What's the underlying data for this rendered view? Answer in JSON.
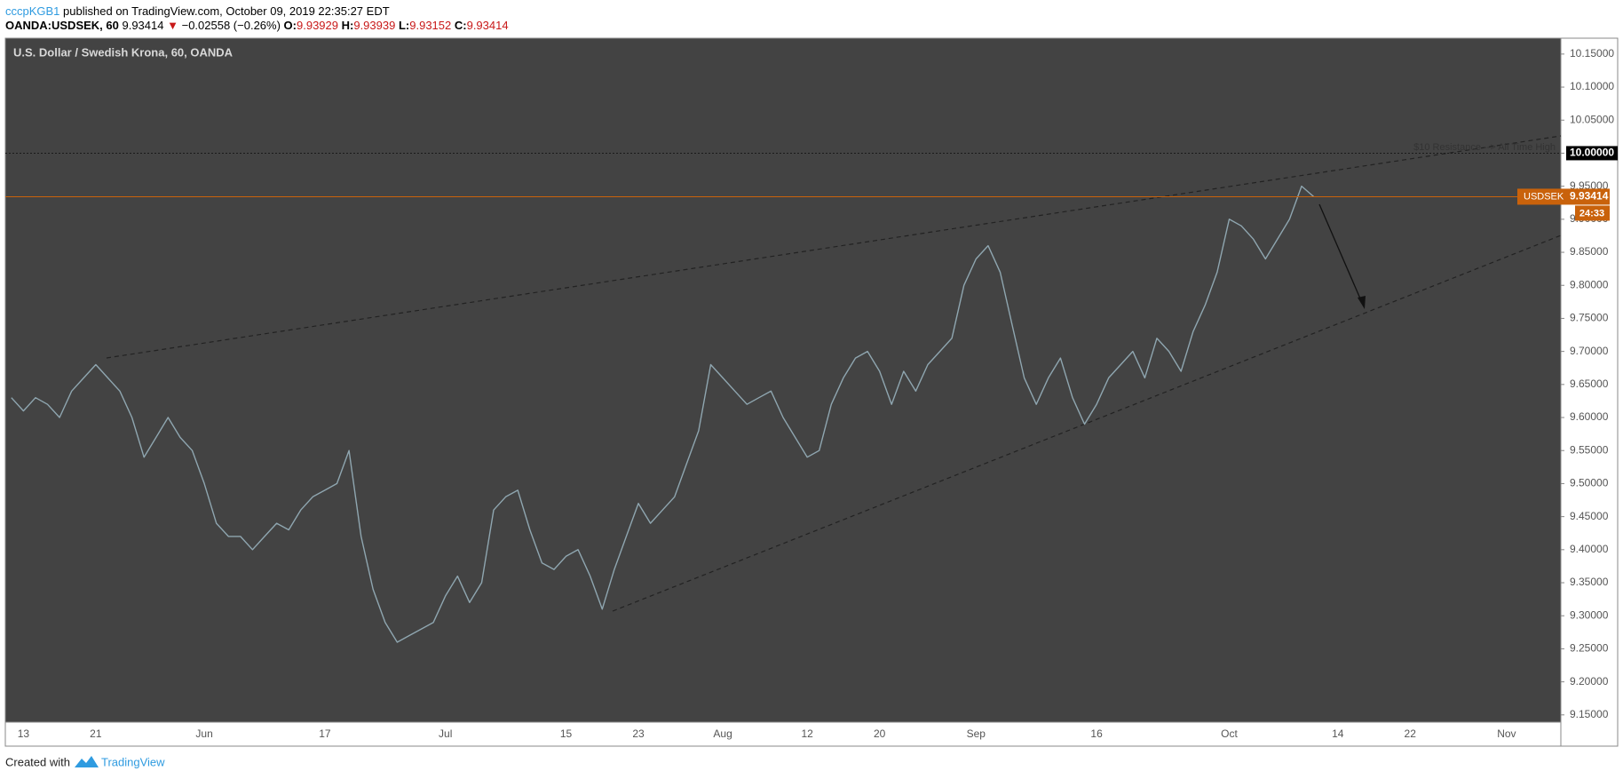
{
  "header": {
    "author": "cccpKGB1",
    "published": "published on TradingView.com, October 09, 2019 22:35:27 EDT",
    "symbol": "OANDA:USDSEK, 60",
    "last": "9.93414",
    "arrow": "▼",
    "change": "−0.02558 (−0.26%)",
    "ohlc": [
      {
        "key": "O:",
        "value": "9.93929"
      },
      {
        "key": "H:",
        "value": "9.93939"
      },
      {
        "key": "L:",
        "value": "9.93152"
      },
      {
        "key": "C:",
        "value": "9.93414"
      }
    ]
  },
  "chart_data": {
    "type": "line",
    "title": "U.S. Dollar / Swedish Krona, 60, OANDA",
    "categories": [
      null,
      "13",
      null,
      null,
      null,
      null,
      null,
      "21",
      null,
      null,
      null,
      null,
      null,
      null,
      null,
      null,
      "Jun",
      null,
      null,
      null,
      null,
      null,
      null,
      null,
      null,
      null,
      "17",
      null,
      null,
      null,
      null,
      null,
      null,
      null,
      null,
      null,
      "Jul",
      null,
      null,
      null,
      null,
      null,
      null,
      null,
      null,
      null,
      "15",
      null,
      null,
      null,
      null,
      null,
      "23",
      null,
      null,
      null,
      null,
      null,
      null,
      "Aug",
      null,
      null,
      null,
      null,
      null,
      null,
      "12",
      null,
      null,
      null,
      null,
      null,
      "20",
      null,
      null,
      null,
      null,
      null,
      null,
      null,
      "Sep",
      null,
      null,
      null,
      null,
      null,
      null,
      null,
      null,
      null,
      "16",
      null,
      null,
      null,
      null,
      null,
      null,
      null,
      null,
      null,
      null,
      "Oct",
      null,
      null,
      null,
      null,
      null,
      null,
      null,
      null,
      "14",
      null,
      null,
      null,
      null,
      null,
      "22",
      null,
      null,
      null,
      null,
      null,
      null,
      null,
      "Nov",
      null,
      null,
      null,
      null
    ],
    "values": [
      9.63,
      9.61,
      9.63,
      9.62,
      9.6,
      9.64,
      9.66,
      9.68,
      9.66,
      9.64,
      9.6,
      9.54,
      9.57,
      9.6,
      9.57,
      9.55,
      9.5,
      9.44,
      9.42,
      9.42,
      9.4,
      9.42,
      9.44,
      9.43,
      9.46,
      9.48,
      9.49,
      9.5,
      9.55,
      9.42,
      9.34,
      9.29,
      9.26,
      9.27,
      9.28,
      9.29,
      9.33,
      9.36,
      9.32,
      9.35,
      9.46,
      9.48,
      9.49,
      9.43,
      9.38,
      9.37,
      9.39,
      9.4,
      9.36,
      9.31,
      9.37,
      9.42,
      9.47,
      9.44,
      9.46,
      9.48,
      9.53,
      9.58,
      9.68,
      9.66,
      9.64,
      9.62,
      9.63,
      9.64,
      9.6,
      9.57,
      9.54,
      9.55,
      9.62,
      9.66,
      9.69,
      9.7,
      9.67,
      9.62,
      9.67,
      9.64,
      9.68,
      9.7,
      9.72,
      9.8,
      9.84,
      9.86,
      9.82,
      9.74,
      9.66,
      9.62,
      9.66,
      9.69,
      9.63,
      9.59,
      9.62,
      9.66,
      9.68,
      9.7,
      9.66,
      9.72,
      9.7,
      9.67,
      9.73,
      9.77,
      9.82,
      9.9,
      9.89,
      9.87,
      9.84,
      9.87,
      9.9,
      9.95,
      9.93414,
      null,
      null,
      null,
      null,
      null,
      null,
      null,
      null,
      null,
      null,
      null,
      null,
      null,
      null,
      null,
      null,
      null,
      null,
      null,
      null
    ],
    "color": "#8fa6b0",
    "ylim": [
      9.139,
      10.174
    ],
    "yticks": [
      {
        "value": 9.15,
        "label": "9.15000"
      },
      {
        "value": 9.2,
        "label": "9.20000"
      },
      {
        "value": 9.25,
        "label": "9.25000"
      },
      {
        "value": 9.3,
        "label": "9.30000"
      },
      {
        "value": 9.35,
        "label": "9.35000"
      },
      {
        "value": 9.4,
        "label": "9.40000"
      },
      {
        "value": 9.45,
        "label": "9.45000"
      },
      {
        "value": 9.5,
        "label": "9.50000"
      },
      {
        "value": 9.55,
        "label": "9.55000"
      },
      {
        "value": 9.6,
        "label": "9.60000"
      },
      {
        "value": 9.65,
        "label": "9.65000"
      },
      {
        "value": 9.7,
        "label": "9.70000"
      },
      {
        "value": 9.75,
        "label": "9.75000"
      },
      {
        "value": 9.8,
        "label": "9.80000"
      },
      {
        "value": 9.85,
        "label": "9.85000"
      },
      {
        "value": 9.9,
        "label": "9.90000"
      },
      {
        "value": 9.95,
        "label": "9.95000"
      },
      {
        "value": 10,
        "label": "10.00000"
      },
      {
        "value": 10.05,
        "label": "10.05000"
      },
      {
        "value": 10.1,
        "label": "10.10000"
      },
      {
        "value": 10.15,
        "label": "10.15000"
      }
    ],
    "grid": false,
    "hline": 10,
    "annotation": "$10 Resistance --> All Time High",
    "price_label": {
      "symbol": "USDSEK",
      "countdown": "24:33",
      "color": "#c9620b"
    }
  },
  "footer": {
    "created": "Created with",
    "brand": "TradingView"
  }
}
